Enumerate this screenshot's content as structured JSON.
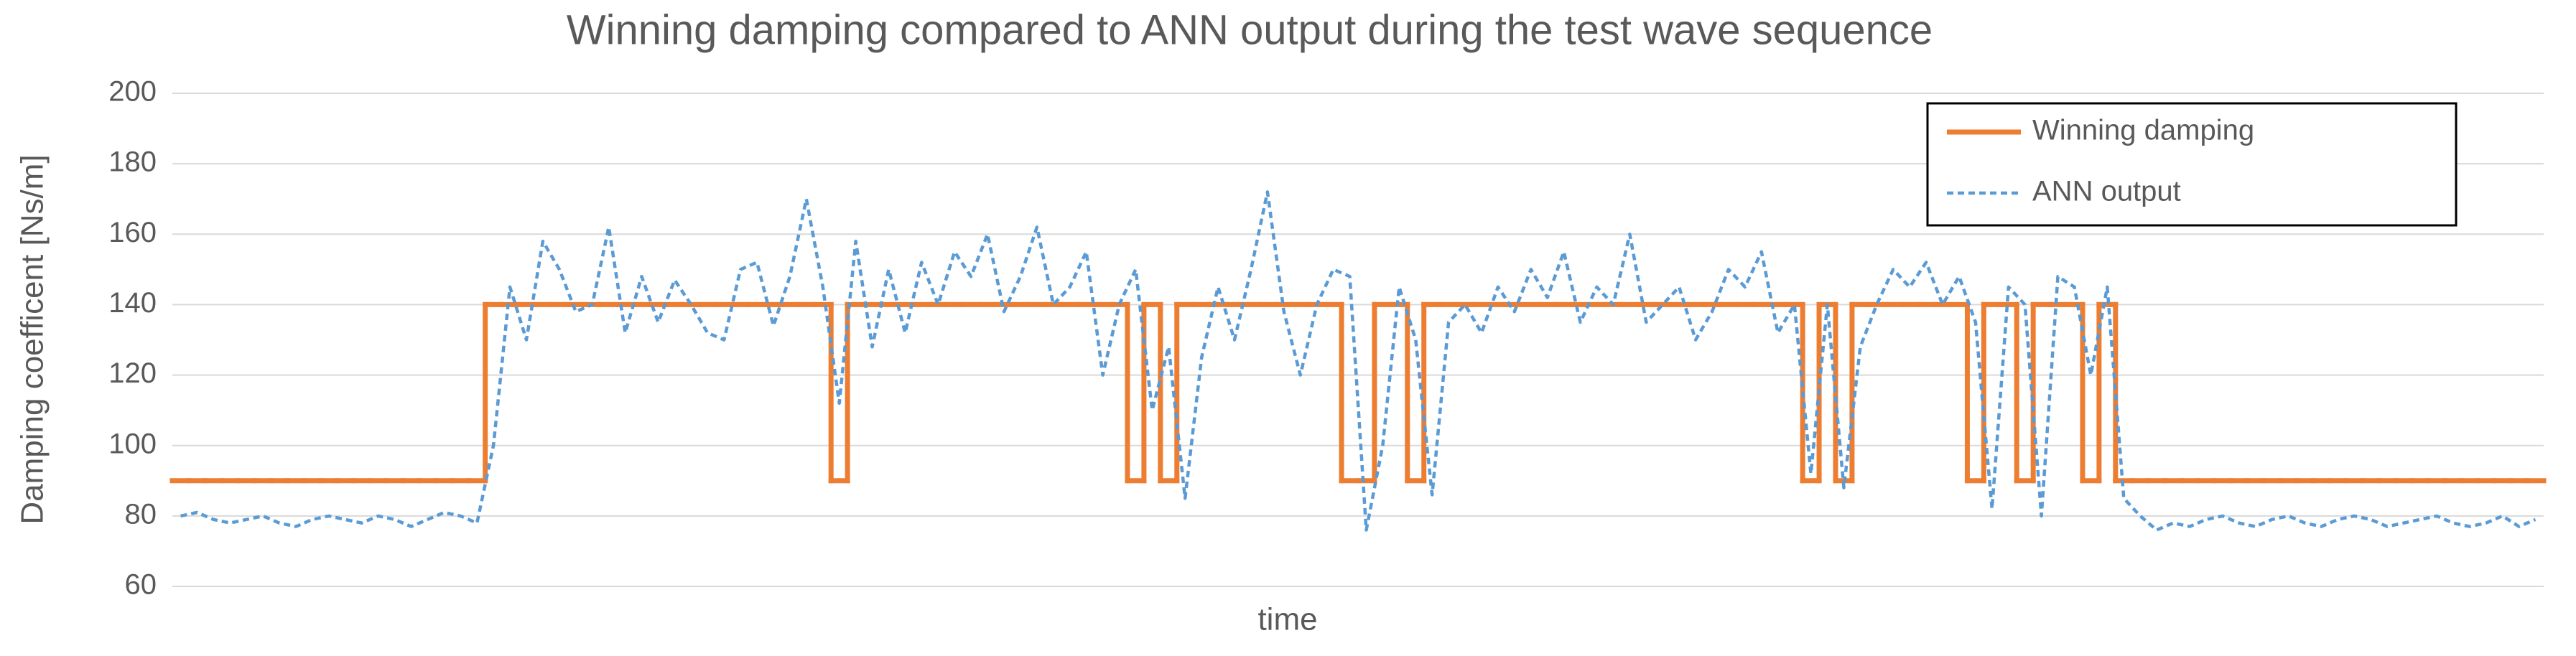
{
  "chart_data": {
    "type": "line",
    "title": "Winning damping compared to ANN output during the test wave sequence",
    "x_label": "time",
    "y_label": "Damping coefficent [Ns/m]",
    "ylim": [
      60,
      200
    ],
    "yticks": [
      60,
      80,
      100,
      120,
      140,
      160,
      180,
      200
    ],
    "grid": true,
    "legend": "top-right",
    "series": [
      {
        "name": "Winning damping",
        "color": "#ed7d31",
        "line_style": "step",
        "values": [
          90,
          90,
          90,
          90,
          90,
          90,
          90,
          90,
          90,
          90,
          90,
          90,
          90,
          90,
          90,
          90,
          90,
          90,
          90,
          140,
          140,
          140,
          140,
          140,
          140,
          140,
          140,
          140,
          140,
          140,
          140,
          140,
          140,
          140,
          140,
          140,
          140,
          140,
          140,
          140,
          90,
          140,
          140,
          140,
          140,
          140,
          140,
          140,
          140,
          140,
          140,
          140,
          140,
          140,
          140,
          140,
          140,
          140,
          90,
          140,
          90,
          140,
          140,
          140,
          140,
          140,
          140,
          140,
          140,
          140,
          140,
          90,
          90,
          140,
          140,
          90,
          140,
          140,
          140,
          140,
          140,
          140,
          140,
          140,
          140,
          140,
          140,
          140,
          140,
          140,
          140,
          140,
          140,
          140,
          140,
          140,
          140,
          140,
          140,
          90,
          140,
          90,
          140,
          140,
          140,
          140,
          140,
          140,
          140,
          90,
          140,
          140,
          90,
          140,
          140,
          140,
          90,
          140,
          90,
          90,
          90,
          90,
          90,
          90,
          90,
          90,
          90,
          90,
          90,
          90,
          90,
          90,
          90,
          90,
          90,
          90,
          90,
          90,
          90,
          90,
          90,
          90,
          90,
          90
        ]
      },
      {
        "name": "ANN output",
        "color": "#5b9bd5",
        "line_style": "dashed",
        "values": [
          80,
          81,
          79,
          78,
          79,
          80,
          78,
          77,
          79,
          80,
          79,
          78,
          80,
          79,
          77,
          79,
          81,
          80,
          78,
          100,
          145,
          130,
          158,
          150,
          138,
          140,
          162,
          132,
          148,
          135,
          147,
          140,
          132,
          130,
          150,
          152,
          134,
          148,
          170,
          145,
          112,
          158,
          128,
          150,
          132,
          152,
          140,
          155,
          148,
          160,
          138,
          148,
          162,
          140,
          145,
          155,
          120,
          140,
          150,
          110,
          128,
          85,
          125,
          145,
          130,
          150,
          172,
          138,
          120,
          140,
          150,
          148,
          76,
          100,
          145,
          130,
          86,
          135,
          140,
          132,
          145,
          138,
          150,
          142,
          155,
          135,
          145,
          140,
          160,
          135,
          140,
          145,
          130,
          138,
          150,
          145,
          155,
          132,
          140,
          92,
          140,
          88,
          128,
          140,
          150,
          145,
          152,
          140,
          148,
          135,
          82,
          145,
          140,
          80,
          148,
          145,
          120,
          145,
          85,
          80,
          76,
          78,
          77,
          79,
          80,
          78,
          77,
          79,
          80,
          78,
          77,
          79,
          80,
          79,
          77,
          78,
          79,
          80,
          78,
          77,
          78,
          80,
          77,
          79
        ]
      }
    ]
  }
}
